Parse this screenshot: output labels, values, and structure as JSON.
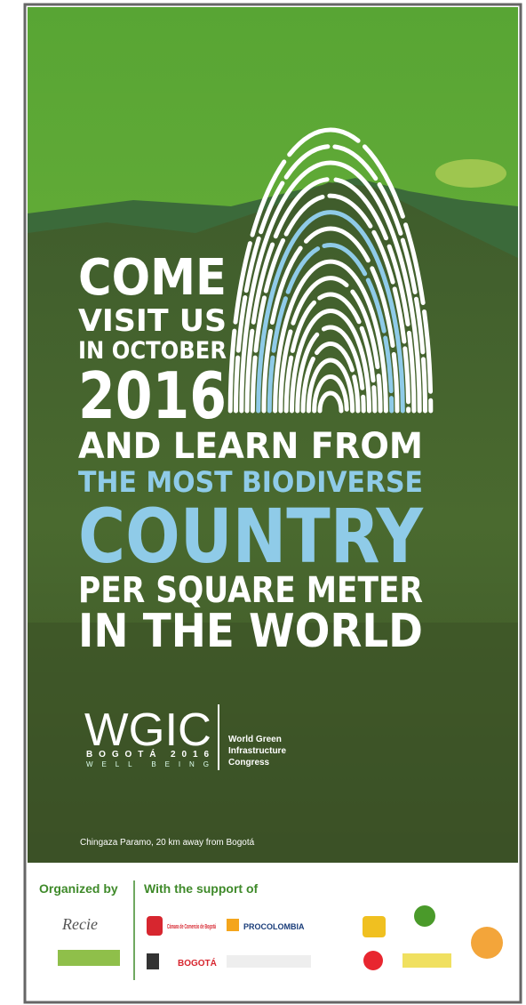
{
  "headline": [
    "COME",
    "VISIT US",
    "IN OCTOBER",
    "2016",
    "AND LEARN FROM",
    "THE MOST BIODIVERSE",
    "COUNTRY",
    "PER SQUARE METER",
    "IN THE WORLD"
  ],
  "brand": {
    "name": "WGIC",
    "city": "BOGOTÁ 2016",
    "motto": "WELL BEING",
    "full_name": [
      "World Green",
      "Infrastructure",
      "Congress"
    ]
  },
  "caption": "Chingaza Paramo, 20 km away from Bogotá",
  "footer": {
    "organized_by": "Organized by",
    "support": "With the support of",
    "logos": [
      "Recie",
      "Cámara de Comercio de Bogotá",
      "PROCOLOMBIA",
      "BOGOTÁ"
    ]
  }
}
